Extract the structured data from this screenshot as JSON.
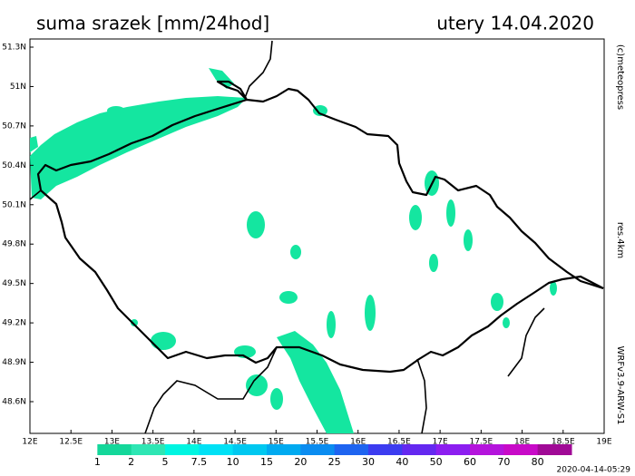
{
  "title": "suma srazek [mm/24hod]",
  "date": "utery 14.04.2020",
  "credits": {
    "source": "(c)meteopress",
    "resolution": "res.4km",
    "model": "WRFv3.9-ARW-S1",
    "issued": "2020-04-14-05:29"
  },
  "axes": {
    "lat_ticks": [
      {
        "value": 51.3,
        "label": "51.3N"
      },
      {
        "value": 51,
        "label": "51N"
      },
      {
        "value": 50.7,
        "label": "50.7N"
      },
      {
        "value": 50.4,
        "label": "50.4N"
      },
      {
        "value": 50.1,
        "label": "50.1N"
      },
      {
        "value": 49.8,
        "label": "49.8N"
      },
      {
        "value": 49.5,
        "label": "49.5N"
      },
      {
        "value": 49.2,
        "label": "49.2N"
      },
      {
        "value": 48.9,
        "label": "48.9N"
      },
      {
        "value": 48.6,
        "label": "48.6N"
      }
    ],
    "lon_ticks": [
      {
        "value": 12,
        "label": "12E"
      },
      {
        "value": 12.5,
        "label": "12.5E"
      },
      {
        "value": 13,
        "label": "13E"
      },
      {
        "value": 13.5,
        "label": "13.5E"
      },
      {
        "value": 14,
        "label": "14E"
      },
      {
        "value": 14.5,
        "label": "14.5E"
      },
      {
        "value": 15,
        "label": "15E"
      },
      {
        "value": 15.5,
        "label": "15.5E"
      },
      {
        "value": 16,
        "label": "16E"
      },
      {
        "value": 16.5,
        "label": "16.5E"
      },
      {
        "value": 17,
        "label": "17E"
      },
      {
        "value": 17.5,
        "label": "17.5E"
      },
      {
        "value": 18,
        "label": "18E"
      },
      {
        "value": 18.5,
        "label": "18.5E"
      },
      {
        "value": 19,
        "label": "19E"
      }
    ]
  },
  "legend": {
    "labels": [
      1,
      2,
      5,
      7.5,
      10,
      15,
      20,
      25,
      30,
      40,
      50,
      60,
      70,
      80
    ],
    "colors": [
      "#ffffff",
      "#14d79a",
      "#2ee6b4",
      "#00f5e1",
      "#00e1f5",
      "#00c8f0",
      "#00aaf0",
      "#0a8cf0",
      "#1e64f0",
      "#3c3cf0",
      "#6428f0",
      "#8c1ef0",
      "#b414dc",
      "#c80ac8",
      "#a00a96"
    ]
  }
}
